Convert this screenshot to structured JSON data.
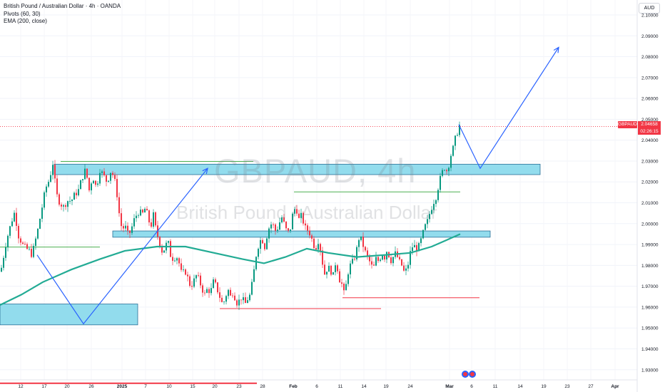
{
  "header": {
    "title": "British Pound / Australian Dollar · 4h · OANDA",
    "indicator1": "Pivots (60, 30)",
    "indicator2": "EMA (200, close)"
  },
  "watermark": {
    "ticker": "GBPAUD, 4h",
    "name": "British Pound / Australian Dollar"
  },
  "currency_button": "AUD",
  "last_price": {
    "symbol": "GBPAUD",
    "value": "2.04658",
    "countdown": "02:26:15"
  },
  "colors": {
    "up": "#089981",
    "down": "#f23645",
    "ema": "#22ab94",
    "zone_fill": "#7fd6ea",
    "zone_border": "#2a6f97",
    "projection": "#2962ff",
    "pivot_high": "#4caf50",
    "pivot_low": "#f23645"
  },
  "chart_data": {
    "type": "candlestick",
    "symbol": "GBPAUD",
    "timeframe": "4h",
    "y_axis": {
      "ticks": [
        "1.93000",
        "1.94000",
        "1.95000",
        "1.96000",
        "1.97000",
        "1.98000",
        "1.99000",
        "2.00000",
        "2.01000",
        "2.02000",
        "2.03000",
        "2.04000",
        "2.05000",
        "2.06000",
        "2.07000",
        "2.08000",
        "2.09000",
        "2.10000"
      ],
      "range": [
        1.925,
        2.105
      ]
    },
    "x_axis": {
      "ticks": [
        "12",
        "17",
        "20",
        "26",
        "2025",
        "7",
        "10",
        "15",
        "20",
        "23",
        "28",
        "Feb",
        "6",
        "11",
        "14",
        "19",
        "24",
        "Mar",
        "6",
        "11",
        "14",
        "19",
        "23",
        "27",
        "Apr"
      ]
    },
    "price_path_anchors": [
      [
        0,
        1.977
      ],
      [
        8,
        1.992
      ],
      [
        16,
        2.002
      ],
      [
        20,
        2.006
      ],
      [
        24,
        1.995
      ],
      [
        32,
        1.989
      ],
      [
        40,
        1.987
      ],
      [
        44,
        1.985
      ],
      [
        52,
        1.997
      ],
      [
        58,
        2.008
      ],
      [
        63,
        2.017
      ],
      [
        68,
        2.021
      ],
      [
        73,
        2.029
      ],
      [
        78,
        2.014
      ],
      [
        83,
        2.01
      ],
      [
        88,
        2.008
      ],
      [
        93,
        2.011
      ],
      [
        99,
        2.011
      ],
      [
        104,
        2.014
      ],
      [
        109,
        2.016
      ],
      [
        114,
        2.022
      ],
      [
        119,
        2.026
      ],
      [
        124,
        2.016
      ],
      [
        129,
        2.023
      ],
      [
        134,
        2.017
      ],
      [
        139,
        2.026
      ],
      [
        144,
        2.023
      ],
      [
        149,
        2.02
      ],
      [
        154,
        2.025
      ],
      [
        158,
        2.023
      ],
      [
        162,
        2.017
      ],
      [
        166,
        2.005
      ],
      [
        170,
        1.997
      ],
      [
        174,
        1.999
      ],
      [
        178,
        1.995
      ],
      [
        182,
        1.996
      ],
      [
        186,
        2.001
      ],
      [
        190,
        2.004
      ],
      [
        194,
        2.006
      ],
      [
        198,
        2.004
      ],
      [
        202,
        2.007
      ],
      [
        206,
        2.004
      ],
      [
        210,
        1.998
      ],
      [
        214,
        2.004
      ],
      [
        218,
        1.996
      ],
      [
        222,
        1.992
      ],
      [
        226,
        1.987
      ],
      [
        230,
        1.988
      ],
      [
        234,
        1.992
      ],
      [
        238,
        1.985
      ],
      [
        242,
        1.983
      ],
      [
        246,
        1.985
      ],
      [
        250,
        1.981
      ],
      [
        254,
        1.975
      ],
      [
        258,
        1.978
      ],
      [
        262,
        1.974
      ],
      [
        266,
        1.97
      ],
      [
        270,
        1.972
      ],
      [
        274,
        1.975
      ],
      [
        278,
        1.973
      ],
      [
        282,
        1.969
      ],
      [
        286,
        1.966
      ],
      [
        290,
        1.969
      ],
      [
        294,
        1.967
      ],
      [
        298,
        1.972
      ],
      [
        302,
        1.97
      ],
      [
        306,
        1.966
      ],
      [
        310,
        1.962
      ],
      [
        314,
        1.963
      ],
      [
        318,
        1.969
      ],
      [
        322,
        1.965
      ],
      [
        326,
        1.968
      ],
      [
        330,
        1.962
      ],
      [
        334,
        1.963
      ],
      [
        338,
        1.965
      ],
      [
        342,
        1.961
      ],
      [
        346,
        1.964
      ],
      [
        350,
        1.966
      ],
      [
        354,
        1.975
      ],
      [
        358,
        1.985
      ],
      [
        362,
        1.991
      ],
      [
        366,
        1.993
      ],
      [
        370,
        1.989
      ],
      [
        374,
        1.996
      ],
      [
        378,
        2.0
      ],
      [
        382,
        1.999
      ],
      [
        386,
        1.996
      ],
      [
        390,
        2.0
      ],
      [
        394,
        2.003
      ],
      [
        398,
        1.999
      ],
      [
        402,
        1.995
      ],
      [
        406,
        1.998
      ],
      [
        410,
        2.006
      ],
      [
        414,
        2.008
      ],
      [
        418,
        2.002
      ],
      [
        422,
        2.004
      ],
      [
        426,
        1.998
      ],
      [
        430,
        1.997
      ],
      [
        434,
        1.995
      ],
      [
        438,
        1.99
      ],
      [
        442,
        1.989
      ],
      [
        446,
        1.993
      ],
      [
        450,
        1.983
      ],
      [
        454,
        1.976
      ],
      [
        458,
        1.979
      ],
      [
        462,
        1.978
      ],
      [
        466,
        1.975
      ],
      [
        470,
        1.983
      ],
      [
        474,
        1.974
      ],
      [
        478,
        1.971
      ],
      [
        482,
        1.965
      ],
      [
        486,
        1.976
      ],
      [
        490,
        1.98
      ],
      [
        494,
        1.982
      ],
      [
        498,
        1.986
      ],
      [
        502,
        1.993
      ],
      [
        506,
        1.992
      ],
      [
        510,
        1.987
      ],
      [
        514,
        1.984
      ],
      [
        518,
        1.981
      ],
      [
        522,
        1.978
      ],
      [
        526,
        1.983
      ],
      [
        530,
        1.982
      ],
      [
        534,
        1.986
      ],
      [
        538,
        1.984
      ],
      [
        542,
        1.988
      ],
      [
        546,
        1.982
      ],
      [
        550,
        1.984
      ],
      [
        554,
        1.986
      ],
      [
        558,
        1.982
      ],
      [
        562,
        1.98
      ],
      [
        566,
        1.976
      ],
      [
        570,
        1.979
      ],
      [
        574,
        1.986
      ],
      [
        578,
        1.99
      ],
      [
        582,
        1.988
      ],
      [
        586,
        1.989
      ],
      [
        590,
        1.993
      ],
      [
        594,
        1.998
      ],
      [
        598,
        2.001
      ],
      [
        602,
        2.006
      ],
      [
        606,
        2.01
      ],
      [
        610,
        2.013
      ],
      [
        614,
        2.019
      ],
      [
        618,
        2.024
      ],
      [
        622,
        2.027
      ],
      [
        626,
        2.025
      ],
      [
        630,
        2.032
      ],
      [
        634,
        2.036
      ],
      [
        638,
        2.042
      ],
      [
        640,
        2.044
      ],
      [
        643,
        2.047
      ]
    ],
    "ema200_anchors": [
      [
        0,
        1.961
      ],
      [
        30,
        1.966
      ],
      [
        60,
        1.972
      ],
      [
        100,
        1.978
      ],
      [
        140,
        1.983
      ],
      [
        175,
        1.987
      ],
      [
        220,
        1.989
      ],
      [
        260,
        1.989
      ],
      [
        300,
        1.986
      ],
      [
        340,
        1.983
      ],
      [
        370,
        1.981
      ],
      [
        400,
        1.984
      ],
      [
        430,
        1.988
      ],
      [
        460,
        1.986
      ],
      [
        500,
        1.984
      ],
      [
        540,
        1.985
      ],
      [
        575,
        1.986
      ],
      [
        605,
        1.989
      ],
      [
        625,
        1.992
      ],
      [
        645,
        1.995
      ]
    ],
    "zones": [
      {
        "x_start": 76,
        "x_end": 757,
        "y_low": 2.0235,
        "y_high": 2.0285
      },
      {
        "x_start": 158,
        "x_end": 687,
        "y_low": 1.9935,
        "y_high": 1.9965
      },
      {
        "x_start": 0,
        "x_end": 193,
        "y_low": 1.9515,
        "y_high": 1.9615
      }
    ],
    "pivot_lines": [
      {
        "kind": "high",
        "x_start": 85,
        "x_end": 355,
        "price": 2.0298
      },
      {
        "kind": "high",
        "x_start": 412,
        "x_end": 645,
        "price": 2.0152
      },
      {
        "kind": "high",
        "x_start": 0,
        "x_end": 140,
        "price": 1.9888
      },
      {
        "kind": "low",
        "x_start": 480,
        "x_end": 672,
        "price": 1.9645
      },
      {
        "kind": "low",
        "x_start": 308,
        "x_end": 534,
        "price": 1.9593
      },
      {
        "kind": "low",
        "x_start": 0,
        "x_end": 360,
        "price": 1.9235
      }
    ],
    "projection_paths": [
      [
        [
          52,
          1.985
        ],
        [
          117,
          1.952
        ],
        [
          291,
          2.0265
        ]
      ],
      [
        [
          643,
          2.0475
        ],
        [
          673,
          2.0265
        ],
        [
          783,
          2.0845
        ]
      ]
    ],
    "last_price_line": 2.04658
  }
}
